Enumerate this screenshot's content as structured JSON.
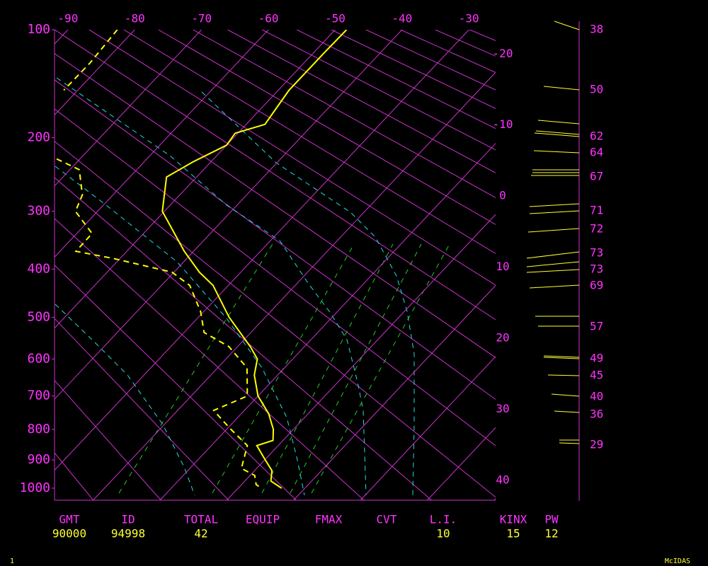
{
  "chart_data": {
    "type": "skewt",
    "plim": [
      100,
      1045
    ],
    "pressure_ticks": [
      100,
      200,
      300,
      400,
      500,
      600,
      700,
      800,
      900,
      1000
    ],
    "xlim": [
      -92,
      -26
    ],
    "xticks_top": [
      -90,
      -80,
      -70,
      -60,
      -50,
      -40,
      -30
    ],
    "xticks_right": [
      -20,
      -10,
      0,
      10,
      20,
      30,
      40
    ],
    "series": [
      {
        "color": "#ffff00",
        "dash": false,
        "pressure": [
          100,
          118,
          150,
          185,
          195,
          209,
          230,
          250,
          300,
          367,
          406,
          432,
          500,
          569,
          600,
          642,
          700,
          752,
          800,
          835,
          852,
          900,
          937,
          974,
          1000
        ],
        "temperature": [
          -48.3,
          -48.4,
          -48.4,
          -47.2,
          -50.4,
          -50.0,
          -52.7,
          -54.5,
          -50.3,
          -41.4,
          -36.2,
          -32.3,
          -25.4,
          -18.1,
          -15.3,
          -13.5,
          -10.0,
          -5.9,
          -3.0,
          -1.5,
          -3.2,
          0.1,
          2.6,
          3.9,
          6.5
        ]
      },
      {
        "color": "#ffff00",
        "dash": true,
        "pressure": [
          100,
          126,
          150,
          null,
          226,
          240,
          275,
          300,
          336,
          367,
          380,
          406,
          432,
          487,
          535,
          569,
          623,
          700,
          742,
          795,
          852,
          929,
          954,
          987,
          1000
        ],
        "temperature": [
          -82.6,
          -82.0,
          -82.1,
          null,
          -73.5,
          -68.6,
          -64.6,
          -63.3,
          -57.7,
          -57.6,
          -51.0,
          -40.3,
          -35.8,
          -30.5,
          -27.0,
          -21.3,
          -15.6,
          -11.6,
          -14.6,
          -9.8,
          -4.6,
          -2.3,
          0.7,
          2.2,
          3.5
        ]
      }
    ]
  },
  "right_column": {
    "labels": [
      38,
      50,
      62,
      64,
      67,
      71,
      72,
      73,
      73,
      69,
      57,
      49,
      45,
      40,
      36,
      29
    ]
  },
  "table": {
    "headers": [
      "GMT",
      "ID",
      "TOTAL",
      "EQUIP",
      "FMAX",
      "CVT",
      "L.I.",
      "KINX",
      "PW"
    ],
    "values": [
      "90000",
      "94998",
      "42",
      null,
      null,
      null,
      "10",
      "15",
      "12"
    ]
  },
  "footer": {
    "page": "1",
    "brand": "McIDAS"
  }
}
